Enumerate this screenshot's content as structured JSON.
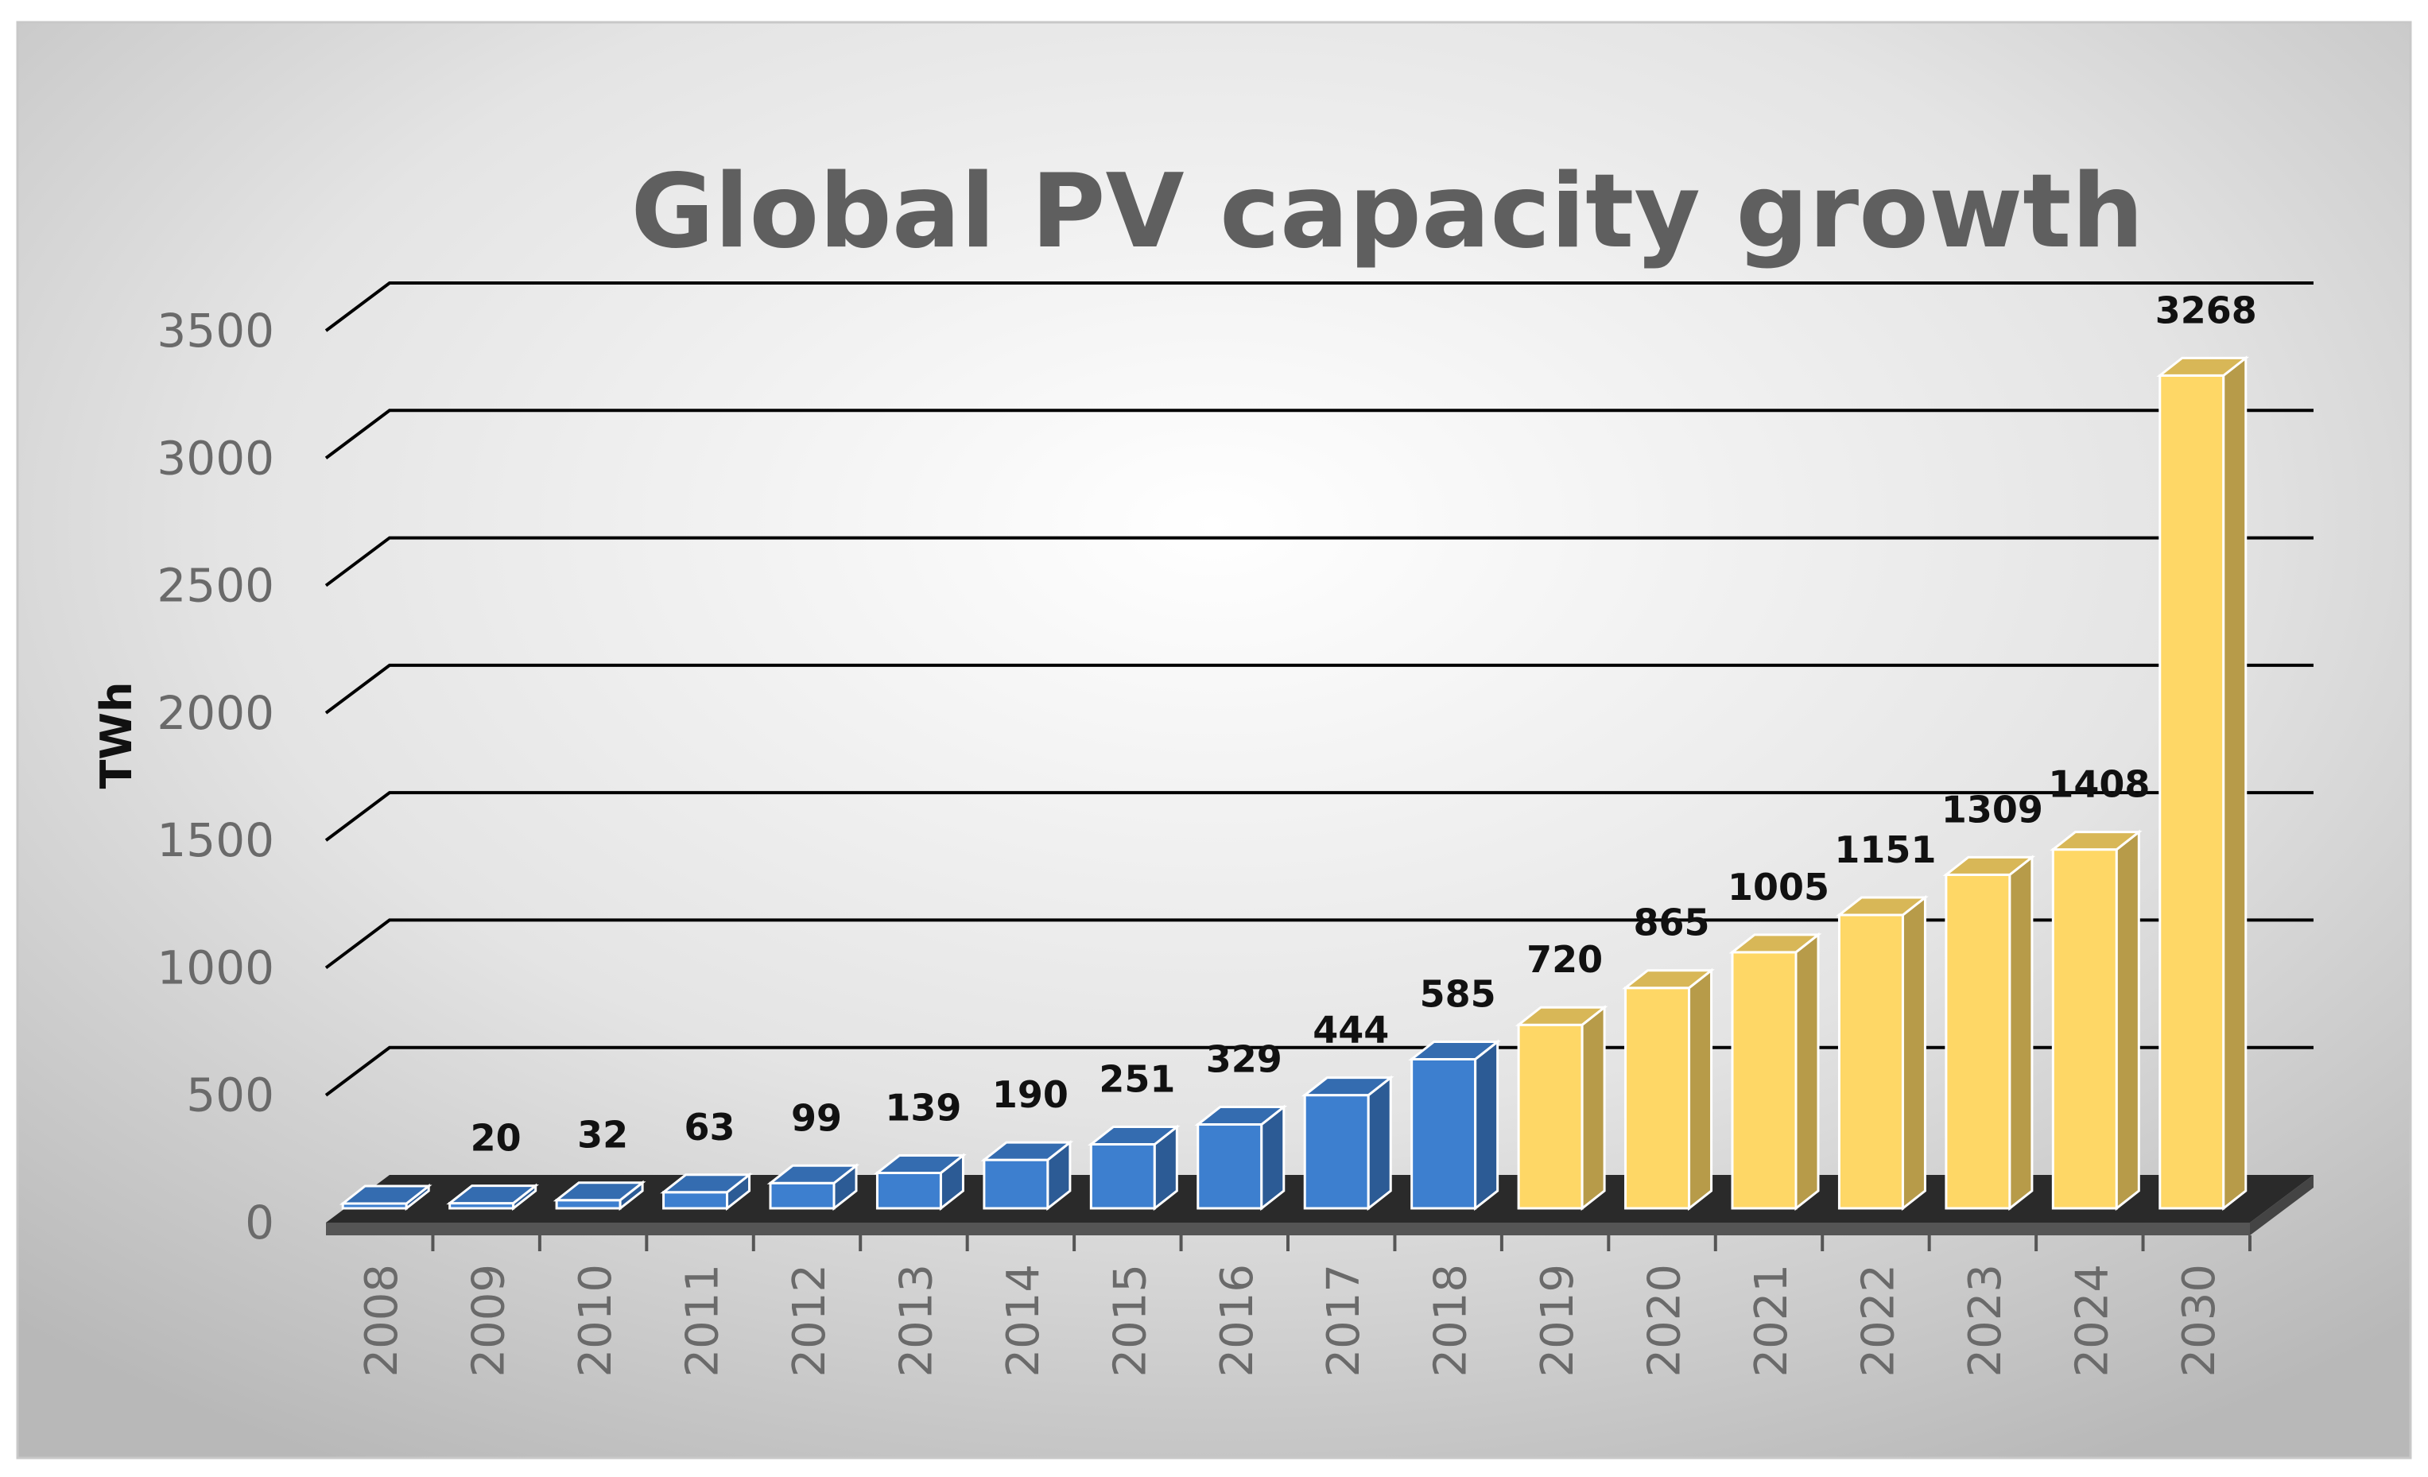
{
  "chart_data": {
    "type": "bar",
    "title": "Global PV capacity growth",
    "xlabel": "",
    "ylabel": "TWh",
    "ylim": [
      0,
      3500
    ],
    "yticks": [
      "0",
      "500",
      "1000",
      "1500",
      "2000",
      "2500",
      "3000",
      "3500"
    ],
    "categories": [
      "2008",
      "2009",
      "2010",
      "2011",
      "2012",
      "2013",
      "2014",
      "2015",
      "2016",
      "2017",
      "2018",
      "2019",
      "2020",
      "2021",
      "2022",
      "2023",
      "2024",
      "2030"
    ],
    "values": [
      12,
      20,
      32,
      63,
      99,
      139,
      190,
      251,
      329,
      444,
      585,
      720,
      865,
      1005,
      1151,
      1309,
      1408,
      3268
    ],
    "data_labels": [
      "",
      "20",
      "32",
      "63",
      "99",
      "139",
      "190",
      "251",
      "329",
      "444",
      "585",
      "720",
      "865",
      "1005",
      "1151",
      "1309",
      "1408",
      "3268"
    ],
    "bar_types": [
      "historical",
      "historical",
      "historical",
      "historical",
      "historical",
      "historical",
      "historical",
      "historical",
      "historical",
      "historical",
      "historical",
      "projected",
      "projected",
      "projected",
      "projected",
      "projected",
      "projected",
      "projected"
    ],
    "colors": {
      "historical": "#3d7fcf",
      "projected": "#fed766"
    },
    "grid": true,
    "legend": "none"
  }
}
